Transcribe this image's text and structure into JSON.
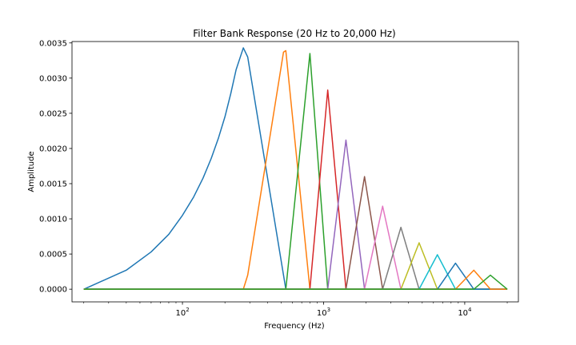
{
  "chart_data": {
    "type": "line",
    "title": "Filter Bank Response (20 Hz to 20,000 Hz)",
    "xlabel": "Frequency (Hz)",
    "ylabel": "Amplitude",
    "xscale": "log",
    "xlim": [
      16.5,
      24000
    ],
    "ylim": [
      -0.00018,
      0.00352
    ],
    "grid": false,
    "legend": "none",
    "x_ticks": [
      {
        "value": 100,
        "base": "10",
        "exp": "2"
      },
      {
        "value": 1000,
        "base": "10",
        "exp": "3"
      },
      {
        "value": 10000,
        "base": "10",
        "exp": "4"
      }
    ],
    "y_ticks": [
      {
        "value": 0,
        "label": "0.0000"
      },
      {
        "value": 0.0005,
        "label": "0.0005"
      },
      {
        "value": 0.001,
        "label": "0.0010"
      },
      {
        "value": 0.0015,
        "label": "0.0015"
      },
      {
        "value": 0.002,
        "label": "0.0020"
      },
      {
        "value": 0.0025,
        "label": "0.0025"
      },
      {
        "value": 0.003,
        "label": "0.0030"
      },
      {
        "value": 0.0035,
        "label": "0.0035"
      }
    ],
    "series": [
      {
        "color": "#1f77b4",
        "x": [
          20,
          40,
          60,
          80,
          100,
          120,
          140,
          160,
          180,
          200,
          220,
          240,
          270,
          290,
          540,
          20000
        ],
        "y": [
          0,
          0.00027,
          0.00053,
          0.00078,
          0.00105,
          0.00131,
          0.00158,
          0.00186,
          0.00215,
          0.00245,
          0.00278,
          0.00312,
          0.00343,
          0.0033,
          0,
          0
        ]
      },
      {
        "color": "#ff7f0e",
        "x": [
          20,
          270,
          290,
          520,
          540,
          800,
          20000
        ],
        "y": [
          0,
          0,
          0.0002,
          0.00337,
          0.00339,
          0,
          0
        ]
      },
      {
        "color": "#2ca02c",
        "x": [
          20,
          540,
          800,
          1070,
          20000
        ],
        "y": [
          0,
          0,
          0.00335,
          0,
          0
        ]
      },
      {
        "color": "#d62728",
        "x": [
          20,
          800,
          1070,
          1440,
          20000
        ],
        "y": [
          0,
          0,
          0.00283,
          0,
          0
        ]
      },
      {
        "color": "#9467bd",
        "x": [
          20,
          1070,
          1440,
          1950,
          20000
        ],
        "y": [
          0,
          0,
          0.00212,
          0,
          0
        ]
      },
      {
        "color": "#8c564b",
        "x": [
          20,
          1440,
          1950,
          2620,
          20000
        ],
        "y": [
          0,
          0,
          0.0016,
          0,
          0
        ]
      },
      {
        "color": "#e377c2",
        "x": [
          20,
          1950,
          2620,
          3530,
          20000
        ],
        "y": [
          0,
          0,
          0.00118,
          0,
          0
        ]
      },
      {
        "color": "#7f7f7f",
        "x": [
          20,
          2620,
          3530,
          4750,
          20000
        ],
        "y": [
          0,
          0,
          0.00088,
          0,
          0
        ]
      },
      {
        "color": "#bcbd22",
        "x": [
          20,
          3530,
          4750,
          6400,
          20000
        ],
        "y": [
          0,
          0,
          0.00066,
          0,
          0
        ]
      },
      {
        "color": "#17becf",
        "x": [
          20,
          4750,
          6400,
          8600,
          20000
        ],
        "y": [
          0,
          0,
          0.00049,
          0,
          0
        ]
      },
      {
        "color": "#1f77b4",
        "x": [
          20,
          6400,
          8600,
          11600,
          20000
        ],
        "y": [
          0,
          0,
          0.00037,
          0,
          0
        ]
      },
      {
        "color": "#ff7f0e",
        "x": [
          20,
          8600,
          11600,
          15200,
          20000
        ],
        "y": [
          0,
          0,
          0.00027,
          0,
          0
        ]
      },
      {
        "color": "#2ca02c",
        "x": [
          20,
          11600,
          15200,
          20000
        ],
        "y": [
          0,
          0,
          0.0002,
          0
        ]
      }
    ]
  }
}
